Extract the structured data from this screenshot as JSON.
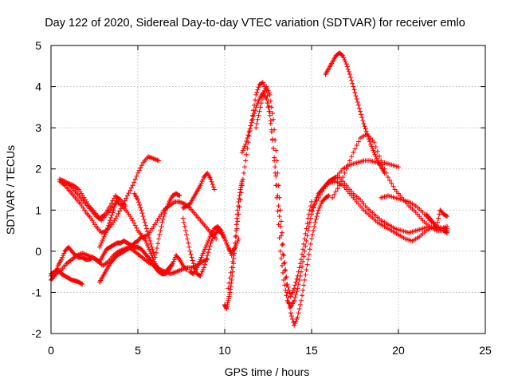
{
  "chart_data": {
    "type": "scatter",
    "title": "Day 122 of 2020, Sidereal Day-to-day VTEC variation (SDTVAR) for receiver emlo",
    "xlabel": "GPS time / hours",
    "ylabel": "SDTVAR / TECUs",
    "xlim": [
      0,
      25
    ],
    "ylim": [
      -2,
      5
    ],
    "xticks": [
      "0",
      "5",
      "10",
      "15",
      "20",
      "25"
    ],
    "yticks": [
      "-2",
      "-1",
      "0",
      "1",
      "2",
      "3",
      "4",
      "5"
    ],
    "grid": true,
    "marker": "+",
    "color": "#ff0000",
    "series": [
      {
        "x": [
          0.0,
          0.2,
          0.4,
          0.6,
          0.8,
          1.0,
          1.2,
          1.4,
          1.6,
          1.8
        ],
        "y": [
          -0.55,
          -0.5,
          -0.45,
          -0.55,
          -0.6,
          -0.65,
          -0.7,
          -0.72,
          -0.75,
          -0.8
        ]
      },
      {
        "x": [
          0.0,
          0.2,
          0.4,
          0.6,
          0.8,
          1.0,
          1.2,
          1.4,
          1.6,
          1.8,
          2.0,
          2.2,
          2.4,
          2.6,
          2.8,
          3.0,
          3.2,
          3.4,
          3.6,
          3.8,
          4.0,
          4.2,
          4.4,
          4.6,
          4.8,
          5.0,
          5.2,
          5.4,
          5.6,
          5.8,
          6.0,
          6.2,
          6.4,
          6.6,
          6.8,
          7.0,
          7.2,
          7.4,
          7.6,
          7.8
        ],
        "y": [
          -0.7,
          -0.6,
          -0.35,
          -0.2,
          0.0,
          0.1,
          0.0,
          -0.1,
          -0.15,
          -0.15,
          -0.2,
          -0.2,
          -0.15,
          -0.2,
          -0.25,
          -0.1,
          0.05,
          0.1,
          0.15,
          0.2,
          0.2,
          0.25,
          0.2,
          0.15,
          0.1,
          0.1,
          0.05,
          -0.05,
          -0.15,
          -0.25,
          -0.4,
          -0.5,
          -0.55,
          -0.55,
          -0.45,
          -0.3,
          -0.1,
          -0.2,
          -0.35,
          -0.45
        ]
      },
      {
        "x": [
          0.0,
          0.3,
          0.6,
          0.9,
          1.2,
          1.5,
          1.8,
          2.1,
          2.4,
          2.7,
          3.0,
          3.3,
          3.6,
          3.9,
          4.2,
          4.5,
          4.8,
          5.1,
          5.4,
          5.7,
          6.0,
          6.3,
          6.6,
          6.9,
          7.2,
          7.5,
          7.8,
          8.1,
          8.4,
          8.7,
          9.0
        ],
        "y": [
          -0.6,
          -0.55,
          -0.45,
          -0.3,
          -0.2,
          -0.1,
          -0.05,
          -0.1,
          -0.15,
          -0.25,
          -0.35,
          -0.25,
          -0.1,
          0.0,
          0.05,
          0.1,
          0.0,
          -0.1,
          -0.2,
          -0.3,
          -0.35,
          -0.45,
          -0.5,
          -0.55,
          -0.5,
          -0.45,
          -0.4,
          -0.4,
          -0.35,
          -0.25,
          -0.2
        ]
      },
      {
        "x": [
          0.5,
          0.8,
          1.1,
          1.4,
          1.7,
          2.0,
          2.3,
          2.6,
          2.9,
          3.2,
          3.5,
          3.8,
          4.1,
          4.4,
          4.7,
          5.0,
          5.3,
          5.6,
          5.9,
          6.2,
          6.5,
          6.8,
          7.1,
          7.4,
          7.7,
          8.0,
          8.3,
          8.6,
          8.9,
          9.2,
          9.5
        ],
        "y": [
          1.75,
          1.7,
          1.6,
          1.45,
          1.3,
          1.15,
          1.0,
          0.85,
          0.75,
          0.9,
          1.05,
          1.2,
          1.1,
          0.95,
          0.75,
          0.5,
          0.35,
          0.4,
          0.6,
          0.8,
          1.0,
          1.1,
          1.2,
          1.2,
          1.15,
          1.05,
          0.9,
          0.75,
          0.6,
          0.45,
          0.3
        ]
      },
      {
        "x": [
          0.5,
          0.8,
          1.1,
          1.4,
          1.7,
          2.0,
          2.3,
          2.6,
          2.9,
          3.2,
          3.5,
          3.8,
          4.1,
          4.4,
          4.7,
          5.0,
          5.3,
          5.6,
          5.9,
          6.2
        ],
        "y": [
          1.7,
          1.6,
          1.45,
          1.3,
          1.15,
          0.95,
          0.8,
          0.6,
          0.45,
          0.5,
          0.65,
          0.85,
          1.1,
          1.35,
          1.6,
          1.9,
          2.15,
          2.3,
          2.25,
          2.2
        ]
      },
      {
        "x": [
          1.0,
          1.3,
          1.6,
          1.9,
          2.2,
          2.5,
          2.8,
          3.1,
          3.4,
          3.7,
          4.0,
          4.3
        ],
        "y": [
          1.65,
          1.6,
          1.5,
          1.3,
          1.1,
          0.95,
          0.8,
          0.9,
          1.1,
          1.35,
          1.25,
          1.1
        ]
      },
      {
        "x": [
          2.8,
          3.0,
          3.2,
          3.4,
          3.6,
          3.8,
          4.0,
          4.2,
          4.4,
          4.6,
          4.8,
          5.0,
          5.2,
          5.4,
          5.6,
          5.8,
          6.0,
          6.2,
          6.4,
          6.6,
          6.8,
          7.0
        ],
        "y": [
          -0.75,
          -0.6,
          -0.45,
          -0.3,
          -0.2,
          -0.1,
          -0.05,
          0.0,
          0.05,
          0.1,
          0.2,
          0.25,
          0.35,
          0.3,
          0.1,
          -0.1,
          -0.3,
          -0.45,
          -0.55,
          -0.5,
          -0.4,
          -0.3
        ]
      },
      {
        "x": [
          2.8,
          3.0,
          3.2,
          3.4,
          3.6,
          3.8
        ],
        "y": [
          0.1,
          0.3,
          0.5,
          0.75,
          1.0,
          1.3
        ]
      },
      {
        "x": [
          4.8,
          5.0,
          5.2,
          5.4,
          5.6,
          5.8,
          6.0,
          6.2,
          6.4,
          6.6,
          6.8,
          7.0,
          7.2,
          7.4
        ],
        "y": [
          1.4,
          1.25,
          1.0,
          0.7,
          0.4,
          0.1,
          -0.15,
          0.3,
          0.7,
          1.0,
          1.2,
          1.35,
          1.4,
          1.35
        ]
      },
      {
        "x": [
          7.6,
          7.8,
          8.0,
          8.2,
          8.4,
          8.6,
          8.8,
          9.0,
          9.2,
          9.4
        ],
        "y": [
          1.05,
          1.1,
          1.15,
          1.3,
          1.45,
          1.6,
          1.8,
          1.9,
          1.75,
          1.5
        ]
      },
      {
        "x": [
          7.6,
          7.8,
          8.0,
          8.2,
          8.4,
          8.6,
          8.8,
          9.0,
          9.2,
          9.4,
          9.6,
          9.8,
          10.0,
          10.2,
          10.4,
          10.6,
          10.8
        ],
        "y": [
          0.8,
          0.4,
          0.0,
          -0.3,
          -0.55,
          -0.6,
          -0.4,
          -0.1,
          0.2,
          0.4,
          0.5,
          0.45,
          0.3,
          0.1,
          -0.05,
          0.1,
          0.3
        ]
      },
      {
        "x": [
          8.0,
          8.2,
          8.4,
          8.6,
          8.8,
          9.0,
          9.2,
          9.4,
          9.6,
          9.8,
          10.0,
          10.2,
          10.4
        ],
        "y": [
          -0.5,
          -0.55,
          -0.4,
          -0.2,
          0.0,
          0.2,
          0.4,
          0.55,
          0.6,
          0.5,
          0.3,
          0.1,
          -0.1
        ]
      },
      {
        "x": [
          10.0,
          10.1,
          10.2,
          10.3,
          10.4,
          10.5,
          10.6,
          10.7,
          10.8,
          10.9,
          11.0
        ],
        "y": [
          -1.3,
          -1.4,
          -1.2,
          -1.0,
          -0.7,
          -0.3,
          0.2,
          0.8,
          1.2,
          1.5,
          1.7
        ]
      },
      {
        "x": [
          10.2,
          10.4,
          10.6,
          10.8,
          11.0,
          11.2,
          11.4,
          11.6,
          11.8,
          12.0,
          12.2,
          12.4,
          12.6,
          12.8,
          13.0,
          13.2,
          13.4,
          13.6,
          13.8,
          14.0,
          14.2,
          14.4,
          14.6,
          14.8,
          15.0,
          15.2,
          15.4,
          15.6,
          15.8,
          16.0,
          16.2,
          16.4
        ],
        "y": [
          -0.9,
          -0.4,
          0.2,
          0.9,
          1.6,
          2.2,
          2.8,
          3.3,
          3.8,
          4.05,
          4.1,
          3.9,
          3.4,
          2.5,
          1.3,
          0.0,
          -0.7,
          -1.2,
          -1.35,
          -1.2,
          -0.9,
          -0.5,
          0.0,
          0.5,
          0.9,
          1.2,
          1.4,
          1.5,
          1.6,
          1.7,
          1.75,
          1.8
        ]
      },
      {
        "x": [
          11.0,
          11.2,
          11.4,
          11.6,
          11.8,
          12.0,
          12.2,
          12.4,
          12.6,
          12.8,
          13.0,
          13.2,
          13.4,
          13.6,
          13.8,
          14.0,
          14.2,
          14.4,
          14.6,
          14.8,
          15.0,
          15.2,
          15.4,
          15.6,
          15.8,
          16.0
        ],
        "y": [
          2.4,
          2.6,
          2.9,
          3.2,
          3.5,
          3.7,
          3.85,
          3.7,
          3.3,
          2.5,
          1.6,
          0.6,
          -0.3,
          -1.0,
          -1.5,
          -1.8,
          -1.6,
          -1.2,
          -0.7,
          -0.2,
          0.3,
          0.7,
          1.0,
          1.2,
          1.3,
          1.35
        ]
      },
      {
        "x": [
          11.8,
          12.0,
          12.2,
          12.4,
          12.6,
          12.8,
          13.0,
          13.2,
          13.4,
          13.6,
          13.8,
          14.0,
          14.2,
          14.4,
          14.6,
          14.8,
          15.0
        ],
        "y": [
          3.0,
          3.4,
          3.8,
          4.0,
          3.8,
          3.2,
          2.2,
          1.0,
          -0.1,
          -0.8,
          -1.1,
          -0.9,
          -0.6,
          -0.2,
          0.3,
          0.8,
          1.2
        ]
      },
      {
        "x": [
          15.8,
          16.0,
          16.2,
          16.4,
          16.6,
          16.8,
          17.0,
          17.2,
          17.4,
          17.6,
          17.8,
          18.0,
          18.2,
          18.4,
          18.6,
          18.8,
          19.0,
          19.2
        ],
        "y": [
          4.3,
          4.45,
          4.6,
          4.75,
          4.82,
          4.75,
          4.55,
          4.3,
          4.0,
          3.7,
          3.4,
          3.1,
          2.85,
          2.6,
          2.4,
          2.2,
          2.05,
          1.9
        ]
      },
      {
        "x": [
          15.0,
          15.4,
          15.8,
          16.2,
          16.6,
          17.0,
          17.4,
          17.8,
          18.2,
          18.6,
          19.0,
          19.4,
          19.8,
          20.2,
          20.6,
          21.0,
          21.4,
          21.8,
          22.2,
          22.6,
          22.8
        ],
        "y": [
          1.0,
          1.3,
          1.6,
          1.75,
          1.8,
          1.6,
          1.4,
          1.25,
          1.05,
          0.9,
          0.75,
          0.65,
          0.55,
          0.5,
          0.45,
          0.5,
          0.55,
          0.6,
          0.55,
          0.5,
          0.5
        ]
      },
      {
        "x": [
          15.6,
          16.0,
          16.4,
          16.8,
          17.2,
          17.6,
          18.0,
          18.4,
          18.8,
          19.2,
          19.6,
          20.0,
          20.4,
          20.8,
          21.2,
          21.6,
          22.0,
          22.4,
          22.8
        ],
        "y": [
          1.5,
          1.65,
          1.7,
          1.6,
          1.4,
          1.2,
          1.0,
          0.85,
          0.7,
          0.6,
          0.5,
          0.4,
          0.3,
          0.25,
          0.35,
          0.5,
          0.6,
          0.55,
          0.6
        ]
      },
      {
        "x": [
          16.2,
          16.6,
          17.0,
          17.4,
          17.8,
          18.2,
          18.6,
          19.0,
          19.4,
          19.8,
          20.2,
          20.6,
          21.0,
          21.4,
          21.8,
          22.2,
          22.6,
          22.8
        ],
        "y": [
          1.3,
          1.6,
          2.0,
          2.4,
          2.75,
          2.85,
          2.65,
          2.2,
          1.8,
          1.5,
          1.3,
          1.1,
          0.95,
          0.75,
          0.6,
          0.5,
          0.5,
          0.45
        ]
      },
      {
        "x": [
          16.4,
          16.8,
          17.2,
          17.6,
          18.0,
          18.4,
          18.8,
          19.2,
          19.6,
          20.0
        ],
        "y": [
          1.8,
          2.0,
          2.1,
          2.15,
          2.2,
          2.2,
          2.15,
          2.15,
          2.1,
          2.05
        ]
      },
      {
        "x": [
          19.0,
          19.4,
          19.8,
          20.2,
          20.6,
          21.0,
          21.4,
          21.8,
          22.2,
          22.6,
          22.8
        ],
        "y": [
          1.3,
          1.35,
          1.3,
          1.25,
          1.2,
          1.1,
          0.95,
          0.75,
          0.6,
          0.55,
          0.55
        ]
      },
      {
        "x": [
          21.6,
          21.8,
          22.0,
          22.2,
          22.4,
          22.6,
          22.8
        ],
        "y": [
          0.9,
          0.8,
          0.7,
          0.6,
          1.0,
          0.9,
          0.85
        ]
      }
    ]
  }
}
